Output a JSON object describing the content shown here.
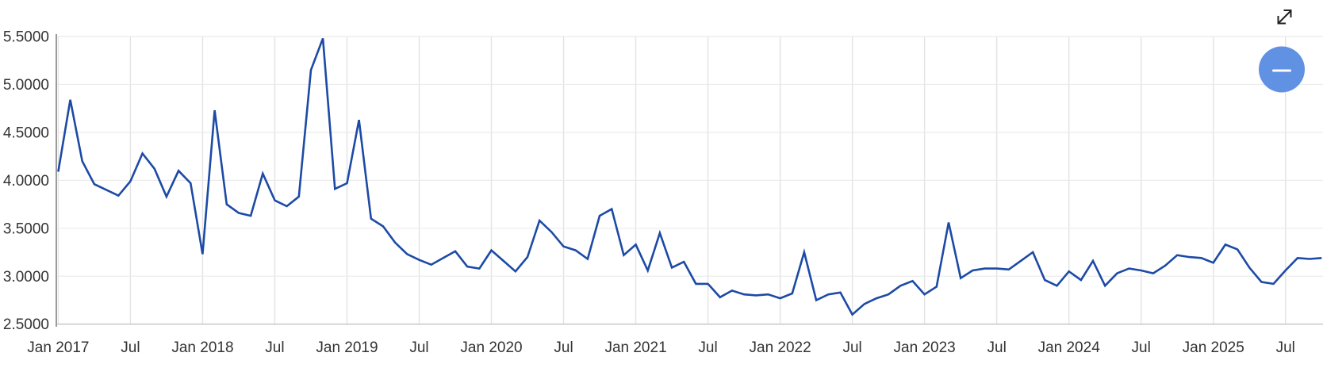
{
  "chart_data": {
    "type": "line",
    "title": "",
    "xlabel": "",
    "ylabel": "",
    "series_start": "Jan 2017",
    "frequency": "monthly",
    "x_tick_labels": [
      "Jan 2017",
      "Jul",
      "Jan 2018",
      "Jul",
      "Jan 2019",
      "Jul",
      "Jan 2020",
      "Jul",
      "Jan 2021",
      "Jul",
      "Jan 2022",
      "Jul",
      "Jan 2023",
      "Jul",
      "Jan 2024",
      "Jul",
      "Jan 2025",
      "Jul"
    ],
    "y_tick_labels": [
      "5.5000",
      "5.0000",
      "4.5000",
      "4.0000",
      "3.5000",
      "3.0000",
      "2.5000"
    ],
    "ylim": [
      2.5,
      5.5
    ],
    "grid": true,
    "legend_position": "none",
    "line_color": "#1c4aa5",
    "values": [
      4.09,
      4.84,
      4.2,
      3.96,
      3.9,
      3.84,
      3.99,
      4.28,
      4.12,
      3.83,
      4.1,
      3.97,
      3.23,
      4.73,
      3.75,
      3.66,
      3.63,
      4.07,
      3.79,
      3.73,
      3.83,
      5.15,
      5.48,
      3.91,
      3.97,
      4.63,
      3.6,
      3.52,
      3.35,
      3.23,
      3.17,
      3.12,
      3.19,
      3.26,
      3.1,
      3.08,
      3.27,
      3.16,
      3.05,
      3.2,
      3.58,
      3.46,
      3.31,
      3.27,
      3.18,
      3.63,
      3.7,
      3.22,
      3.33,
      3.06,
      3.45,
      3.09,
      3.15,
      2.92,
      2.92,
      2.78,
      2.85,
      2.81,
      2.8,
      2.81,
      2.77,
      2.82,
      3.25,
      2.75,
      2.81,
      2.83,
      2.6,
      2.71,
      2.77,
      2.81,
      2.9,
      2.95,
      2.81,
      2.89,
      3.56,
      2.98,
      3.06,
      3.08,
      3.08,
      3.07,
      3.16,
      3.25,
      2.96,
      2.9,
      3.05,
      2.96,
      3.16,
      2.9,
      3.03,
      3.08,
      3.06,
      3.03,
      3.11,
      3.22,
      3.2,
      3.19,
      3.14,
      3.33,
      3.28,
      3.09,
      2.94,
      2.92,
      3.06,
      3.19,
      3.18,
      3.19
    ]
  },
  "controls": {
    "expand_icon": "diagonal-resize-arrows",
    "zoom_out_button_icon": "minus",
    "zoom_out_button_color": "#6191e2",
    "zoom_out_button_minus_color": "#ffffff"
  },
  "colors": {
    "line": "#1c4aa5",
    "axis_text": "#333333",
    "h_gridline": "#ebebeb",
    "v_gridline": "#e3e3e3",
    "x_axis_line": "#cccccc",
    "y_axis_line": "#9b9b9b",
    "background": "#ffffff"
  }
}
